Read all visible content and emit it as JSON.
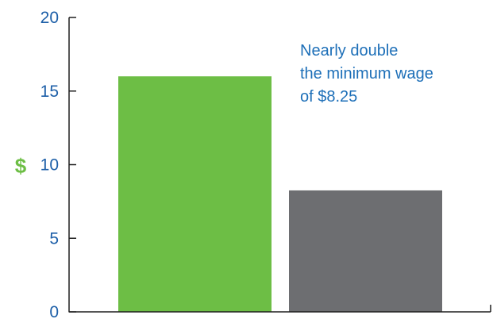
{
  "colors": {
    "axis": "#1f1f1f",
    "tick_text": "#1d5fa8",
    "ylabel": "#6dbe45",
    "annotation": "#1d6fb8"
  },
  "chart_data": {
    "type": "bar",
    "title": "",
    "xlabel": "",
    "ylabel": "$",
    "ylim": [
      0,
      20
    ],
    "yticks": [
      0,
      5,
      10,
      15,
      20
    ],
    "categories": [
      "",
      ""
    ],
    "values": [
      16,
      8.25
    ],
    "bar_colors": [
      "#6dbe45",
      "#6d6e71"
    ],
    "grid": false,
    "annotation": {
      "lines": [
        "Nearly double",
        "the minimum wage",
        "of $8.25"
      ]
    }
  }
}
